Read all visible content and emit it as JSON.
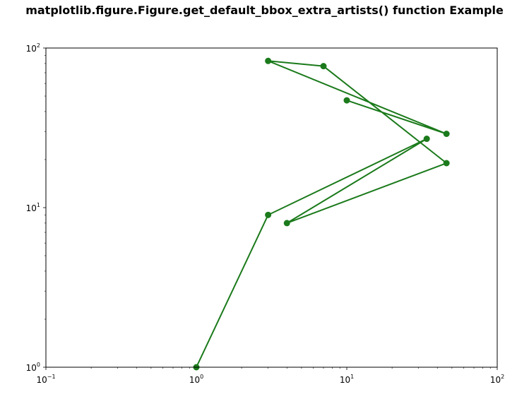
{
  "title": "matplotlib.figure.Figure.get_default_bbox_extra_artists() function Example",
  "chart_data": {
    "type": "line",
    "title": "matplotlib.figure.Figure.get_default_bbox_extra_artists() function Example",
    "xlabel": "",
    "ylabel": "",
    "xscale": "log",
    "yscale": "log",
    "xlim": [
      0.1,
      100
    ],
    "ylim": [
      1,
      100
    ],
    "grid": false,
    "series": [
      {
        "color": "#1b7a1b",
        "marker": "circle",
        "x": [
          1,
          3,
          34,
          4,
          46,
          7,
          3,
          46,
          10
        ],
        "y": [
          1,
          9,
          27,
          8,
          19,
          77,
          83,
          29,
          47
        ]
      }
    ],
    "x_ticks": [
      {
        "value": 0.1,
        "base": "10",
        "exp": "−1"
      },
      {
        "value": 1,
        "base": "10",
        "exp": "0"
      },
      {
        "value": 10,
        "base": "10",
        "exp": "1"
      },
      {
        "value": 100,
        "base": "10",
        "exp": "2"
      }
    ],
    "y_ticks": [
      {
        "value": 1,
        "base": "10",
        "exp": "0"
      },
      {
        "value": 10,
        "base": "10",
        "exp": "1"
      },
      {
        "value": 100,
        "base": "10",
        "exp": "2"
      }
    ]
  }
}
